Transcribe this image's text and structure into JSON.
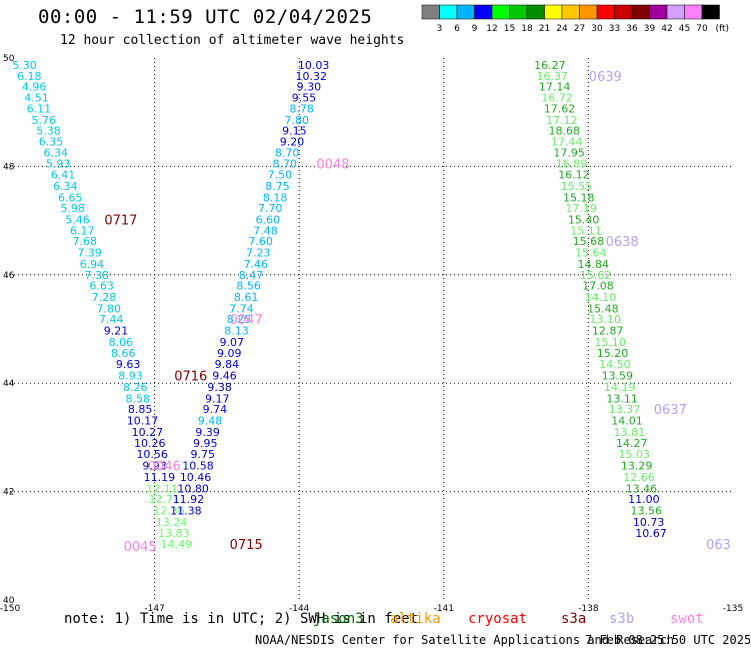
{
  "header": {
    "title": "00:00 - 11:59 UTC 02/04/2025",
    "subtitle": "12 hour collection of altimeter wave heights"
  },
  "colorbar": {
    "unit": "(ft)",
    "labels": [
      "3",
      "6",
      "9",
      "12",
      "15",
      "18",
      "21",
      "24",
      "27",
      "30",
      "33",
      "36",
      "39",
      "42",
      "45",
      "70"
    ],
    "colors": [
      "#808080",
      "#00ffff",
      "#00b4ff",
      "#0000ff",
      "#00ff00",
      "#00c800",
      "#008c00",
      "#ffff00",
      "#ffc800",
      "#ff9600",
      "#ff0000",
      "#c80000",
      "#800000",
      "#a000a0",
      "#d2a0ff",
      "#ff80ff",
      "#000000"
    ]
  },
  "footer": {
    "note": "note: 1) Time is in UTC; 2) SWH is in feet",
    "credit": "NOAA/NESDIS Center for Satellite Applications and Research",
    "timestamp": "7 Feb 08:25:50 UTC 2025",
    "satellites": [
      {
        "name": "jason3",
        "color": "#006400"
      },
      {
        "name": "altika",
        "color": "#ff9600"
      },
      {
        "name": "cryosat",
        "color": "#ff0000"
      },
      {
        "name": "s3a",
        "color": "#800000"
      },
      {
        "name": "s3b",
        "color": "#b4a0f0"
      },
      {
        "name": "swot",
        "color": "#ff80e0"
      }
    ]
  },
  "chart_data": {
    "type": "scatter",
    "xlim": [
      -150,
      -135
    ],
    "ylim": [
      40,
      50
    ],
    "x_ticks": [
      "-150",
      "-147",
      "-144",
      "-141",
      "-138",
      "-135"
    ],
    "y_ticks": [
      "40",
      "42",
      "44",
      "46",
      "48",
      "50"
    ],
    "grid": true,
    "tracks": [
      {
        "points": [
          {
            "lon": -149.7,
            "lat": 49.87,
            "v": "5.30"
          },
          {
            "lon": -149.6,
            "lat": 49.67,
            "v": "6.18"
          },
          {
            "lon": -149.5,
            "lat": 49.47,
            "v": "4.96"
          },
          {
            "lon": -149.45,
            "lat": 49.27,
            "v": "4.51"
          },
          {
            "lon": -149.4,
            "lat": 49.07,
            "v": "6.11"
          },
          {
            "lon": -149.3,
            "lat": 48.86,
            "v": "5.76"
          },
          {
            "lon": -149.2,
            "lat": 48.66,
            "v": "5.38"
          },
          {
            "lon": -149.15,
            "lat": 48.46,
            "v": "6.35"
          },
          {
            "lon": -149.05,
            "lat": 48.26,
            "v": "6.34"
          },
          {
            "lon": -149.0,
            "lat": 48.05,
            "v": "5.93"
          },
          {
            "lon": -148.9,
            "lat": 47.85,
            "v": "6.41"
          },
          {
            "lon": -148.85,
            "lat": 47.64,
            "v": "6.34"
          },
          {
            "lon": -148.75,
            "lat": 47.43,
            "v": "6.65"
          },
          {
            "lon": -148.7,
            "lat": 47.23,
            "v": "5.98"
          },
          {
            "lon": -148.6,
            "lat": 47.02,
            "v": "5.46"
          },
          {
            "lon": -148.5,
            "lat": 46.82,
            "v": "6.17"
          },
          {
            "lon": -148.45,
            "lat": 46.62,
            "v": "7.68"
          },
          {
            "lon": -148.35,
            "lat": 46.41,
            "v": "7.39"
          },
          {
            "lon": -148.3,
            "lat": 46.2,
            "v": "6.94"
          },
          {
            "lon": -148.2,
            "lat": 46.0,
            "v": "7.38"
          },
          {
            "lon": -148.1,
            "lat": 45.8,
            "v": "6.63"
          },
          {
            "lon": -148.05,
            "lat": 45.59,
            "v": "7.28"
          },
          {
            "lon": -147.95,
            "lat": 45.38,
            "v": "7.80"
          },
          {
            "lon": -147.9,
            "lat": 45.18,
            "v": "7.44"
          },
          {
            "lon": -147.8,
            "lat": 44.97,
            "v": "9.21",
            "c": "#0000cd"
          },
          {
            "lon": -147.7,
            "lat": 44.76,
            "v": "8.06"
          },
          {
            "lon": -147.65,
            "lat": 44.56,
            "v": "8.66"
          },
          {
            "lon": -147.55,
            "lat": 44.35,
            "v": "9.63",
            "c": "#0000cd"
          },
          {
            "lon": -147.5,
            "lat": 44.14,
            "v": "8.93"
          },
          {
            "lon": -147.4,
            "lat": 43.93,
            "v": "8.26"
          },
          {
            "lon": -147.35,
            "lat": 43.72,
            "v": "8.58"
          },
          {
            "lon": -147.3,
            "lat": 43.52,
            "v": "8.85",
            "c": "#0000cd"
          },
          {
            "lon": -147.25,
            "lat": 43.31,
            "v": "10.17",
            "c": "#0000cd"
          },
          {
            "lon": -147.15,
            "lat": 43.1,
            "v": "10.27",
            "c": "#0000cd"
          },
          {
            "lon": -147.1,
            "lat": 42.9,
            "v": "10.26",
            "c": "#0000cd"
          },
          {
            "lon": -147.05,
            "lat": 42.69,
            "v": "10.56",
            "c": "#0000cd"
          },
          {
            "lon": -147.0,
            "lat": 42.48,
            "v": "9.93",
            "c": "#0000cd"
          },
          {
            "lon": -146.9,
            "lat": 42.27,
            "v": "11.19",
            "c": "#0000cd"
          },
          {
            "lon": -146.85,
            "lat": 42.06,
            "v": "12.11",
            "c": "#66ff66"
          },
          {
            "lon": -146.8,
            "lat": 41.86,
            "v": "12.71",
            "c": "#66ff66"
          },
          {
            "lon": -146.7,
            "lat": 41.65,
            "v": "12.36",
            "c": "#66ff66"
          },
          {
            "lon": -146.65,
            "lat": 41.44,
            "v": "13.24",
            "c": "#66ff66"
          },
          {
            "lon": -146.6,
            "lat": 41.24,
            "v": "13.83",
            "c": "#66ff66"
          },
          {
            "lon": -146.55,
            "lat": 41.03,
            "v": "14.49",
            "c": "#66ff66"
          }
        ],
        "color": "#00c8e6",
        "label": "0717",
        "label_lon": -147.7,
        "label_lat": 47.02,
        "label_color": "#800000"
      },
      {
        "points": [
          {
            "lon": -143.7,
            "lat": 49.87,
            "v": "10.03"
          },
          {
            "lon": -143.75,
            "lat": 49.67,
            "v": "10.32"
          },
          {
            "lon": -143.8,
            "lat": 49.47,
            "v": "9.30"
          },
          {
            "lon": -143.9,
            "lat": 49.27,
            "v": "9.55"
          },
          {
            "lon": -143.95,
            "lat": 49.07,
            "v": "8.78",
            "c": "#00b4ff"
          },
          {
            "lon": -144.05,
            "lat": 48.86,
            "v": "7.80",
            "c": "#00b4ff"
          },
          {
            "lon": -144.1,
            "lat": 48.66,
            "v": "9.15"
          },
          {
            "lon": -144.15,
            "lat": 48.46,
            "v": "9.20"
          },
          {
            "lon": -144.25,
            "lat": 48.26,
            "v": "8.70",
            "c": "#00b4ff"
          },
          {
            "lon": -144.3,
            "lat": 48.05,
            "v": "8.70",
            "c": "#00b4ff"
          },
          {
            "lon": -144.4,
            "lat": 47.85,
            "v": "7.50",
            "c": "#00b4ff"
          },
          {
            "lon": -144.45,
            "lat": 47.64,
            "v": "8.75",
            "c": "#00b4ff"
          },
          {
            "lon": -144.5,
            "lat": 47.43,
            "v": "8.18",
            "c": "#00b4ff"
          },
          {
            "lon": -144.6,
            "lat": 47.23,
            "v": "7.70",
            "c": "#00b4ff"
          },
          {
            "lon": -144.65,
            "lat": 47.02,
            "v": "6.60",
            "c": "#00b4ff"
          },
          {
            "lon": -144.7,
            "lat": 46.82,
            "v": "7.48",
            "c": "#00b4ff"
          },
          {
            "lon": -144.8,
            "lat": 46.62,
            "v": "7.60",
            "c": "#00b4ff"
          },
          {
            "lon": -144.85,
            "lat": 46.41,
            "v": "7.23",
            "c": "#00b4ff"
          },
          {
            "lon": -144.9,
            "lat": 46.2,
            "v": "7.46",
            "c": "#00b4ff"
          },
          {
            "lon": -145.0,
            "lat": 46.0,
            "v": "8.47",
            "c": "#00b4ff"
          },
          {
            "lon": -145.05,
            "lat": 45.8,
            "v": "8.56",
            "c": "#00b4ff"
          },
          {
            "lon": -145.1,
            "lat": 45.59,
            "v": "8.61",
            "c": "#00b4ff"
          },
          {
            "lon": -145.2,
            "lat": 45.38,
            "v": "7.74",
            "c": "#00b4ff"
          },
          {
            "lon": -145.25,
            "lat": 45.18,
            "v": "8.25",
            "c": "#00b4ff"
          },
          {
            "lon": -145.3,
            "lat": 44.97,
            "v": "8.13",
            "c": "#00b4ff"
          },
          {
            "lon": -145.4,
            "lat": 44.76,
            "v": "9.07"
          },
          {
            "lon": -145.45,
            "lat": 44.56,
            "v": "9.09"
          },
          {
            "lon": -145.5,
            "lat": 44.35,
            "v": "9.84"
          },
          {
            "lon": -145.55,
            "lat": 44.14,
            "v": "9.46"
          },
          {
            "lon": -145.65,
            "lat": 43.93,
            "v": "9.38"
          },
          {
            "lon": -145.7,
            "lat": 43.72,
            "v": "9.17"
          },
          {
            "lon": -145.75,
            "lat": 43.52,
            "v": "9.74"
          },
          {
            "lon": -145.85,
            "lat": 43.31,
            "v": "9.48",
            "c": "#00b4ff"
          },
          {
            "lon": -145.9,
            "lat": 43.1,
            "v": "9.39"
          },
          {
            "lon": -145.95,
            "lat": 42.9,
            "v": "9.95"
          },
          {
            "lon": -146.0,
            "lat": 42.69,
            "v": "9.75"
          },
          {
            "lon": -146.1,
            "lat": 42.48,
            "v": "10.58"
          },
          {
            "lon": -146.15,
            "lat": 42.27,
            "v": "10.46"
          },
          {
            "lon": -146.2,
            "lat": 42.06,
            "v": "10.80"
          },
          {
            "lon": -146.3,
            "lat": 41.86,
            "v": "11.92"
          },
          {
            "lon": -146.35,
            "lat": 41.65,
            "v": "11.38"
          }
        ],
        "color": "#0000cd",
        "label": "0048",
        "label_lon": -143.3,
        "label_lat": 48.05,
        "label_color": "#ff80e0"
      },
      {
        "points": [
          {
            "lon": -138.8,
            "lat": 49.87,
            "v": "16.27"
          },
          {
            "lon": -138.75,
            "lat": 49.67,
            "v": "16.37"
          },
          {
            "lon": -138.7,
            "lat": 49.47,
            "v": "17.14"
          },
          {
            "lon": -138.65,
            "lat": 49.27,
            "v": "16.72"
          },
          {
            "lon": -138.6,
            "lat": 49.07,
            "v": "17.62"
          },
          {
            "lon": -138.55,
            "lat": 48.86,
            "v": "17.12"
          },
          {
            "lon": -138.5,
            "lat": 48.66,
            "v": "18.68"
          },
          {
            "lon": -138.45,
            "lat": 48.46,
            "v": "17.44"
          },
          {
            "lon": -138.4,
            "lat": 48.26,
            "v": "17.95"
          },
          {
            "lon": -138.35,
            "lat": 48.05,
            "v": "16.89"
          },
          {
            "lon": -138.3,
            "lat": 47.85,
            "v": "16.12"
          },
          {
            "lon": -138.25,
            "lat": 47.64,
            "v": "15.55"
          },
          {
            "lon": -138.2,
            "lat": 47.43,
            "v": "15.18"
          },
          {
            "lon": -138.15,
            "lat": 47.23,
            "v": "17.19"
          },
          {
            "lon": -138.1,
            "lat": 47.02,
            "v": "15.40"
          },
          {
            "lon": -138.05,
            "lat": 46.82,
            "v": "15.11"
          },
          {
            "lon": -138.0,
            "lat": 46.62,
            "v": "15.68"
          },
          {
            "lon": -137.95,
            "lat": 46.41,
            "v": "15.64"
          },
          {
            "lon": -137.9,
            "lat": 46.2,
            "v": "14.84"
          },
          {
            "lon": -137.85,
            "lat": 46.0,
            "v": "15.62"
          },
          {
            "lon": -137.8,
            "lat": 45.8,
            "v": "17.08"
          },
          {
            "lon": -137.75,
            "lat": 45.59,
            "v": "14.10"
          },
          {
            "lon": -137.7,
            "lat": 45.38,
            "v": "15.48"
          },
          {
            "lon": -137.65,
            "lat": 45.18,
            "v": "13.10"
          },
          {
            "lon": -137.6,
            "lat": 44.97,
            "v": "12.87"
          },
          {
            "lon": -137.55,
            "lat": 44.76,
            "v": "15.10"
          },
          {
            "lon": -137.5,
            "lat": 44.56,
            "v": "15.20"
          },
          {
            "lon": -137.45,
            "lat": 44.35,
            "v": "14.50"
          },
          {
            "lon": -137.4,
            "lat": 44.14,
            "v": "13.59"
          },
          {
            "lon": -137.35,
            "lat": 43.93,
            "v": "14.19"
          },
          {
            "lon": -137.3,
            "lat": 43.72,
            "v": "13.11"
          },
          {
            "lon": -137.25,
            "lat": 43.52,
            "v": "13.37"
          },
          {
            "lon": -137.2,
            "lat": 43.31,
            "v": "14.01"
          },
          {
            "lon": -137.15,
            "lat": 43.1,
            "v": "13.81"
          },
          {
            "lon": -137.1,
            "lat": 42.9,
            "v": "14.27"
          },
          {
            "lon": -137.05,
            "lat": 42.69,
            "v": "15.03"
          },
          {
            "lon": -137.0,
            "lat": 42.48,
            "v": "13.29"
          },
          {
            "lon": -136.95,
            "lat": 42.27,
            "v": "12.66"
          },
          {
            "lon": -136.9,
            "lat": 42.06,
            "v": "13.46"
          },
          {
            "lon": -136.85,
            "lat": 41.86,
            "v": "11.00",
            "c": "#0000cd"
          },
          {
            "lon": -136.8,
            "lat": 41.65,
            "v": "13.56"
          },
          {
            "lon": -136.75,
            "lat": 41.44,
            "v": "10.73",
            "c": "#0000cd"
          },
          {
            "lon": -136.7,
            "lat": 41.24,
            "v": "10.67",
            "c": "#0000cd"
          }
        ],
        "color": "#22aa22",
        "alt_color": "#66ee66"
      }
    ],
    "pass_labels": [
      {
        "text": "0639",
        "lon": -137.65,
        "lat": 49.67,
        "color": "#b4a0f0"
      },
      {
        "text": "0638",
        "lon": -137.3,
        "lat": 46.62,
        "color": "#b4a0f0"
      },
      {
        "text": "0637",
        "lon": -136.3,
        "lat": 43.52,
        "color": "#b4a0f0"
      },
      {
        "text": "063",
        "lon": -135.3,
        "lat": 41.03,
        "color": "#b4a0f0"
      },
      {
        "text": "0047",
        "lon": -145.1,
        "lat": 45.18,
        "color": "#ff80e0"
      },
      {
        "text": "0716",
        "lon": -146.25,
        "lat": 44.14,
        "color": "#800000"
      },
      {
        "text": "0046",
        "lon": -146.8,
        "lat": 42.48,
        "color": "#ff80e0"
      },
      {
        "text": "0045",
        "lon": -147.3,
        "lat": 41.0,
        "color": "#ff80e0"
      },
      {
        "text": "0715",
        "lon": -145.1,
        "lat": 41.03,
        "color": "#800000"
      }
    ]
  }
}
